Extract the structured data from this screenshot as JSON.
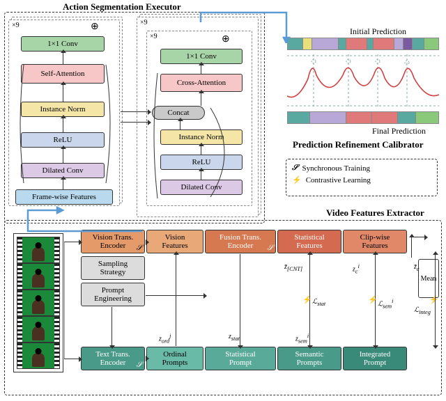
{
  "titles": {
    "ase": "Action Segmentation Executor",
    "prc": "Prediction Refinement Calibrator",
    "vfe": "Video Features Extractor",
    "initial": "Initial Prediction",
    "final": "Final Prediction"
  },
  "left_stack": {
    "repeat": "×9",
    "blocks": [
      "1×1 Conv",
      "Self-Attention",
      "Instance Norm",
      "ReLU",
      "Dilated Conv"
    ],
    "input": "Frame-wise Features",
    "colors": [
      "#a8d5a8",
      "#f7c6c6",
      "#f5e6a8",
      "#c9d6ec",
      "#dcc9e6"
    ],
    "input_color": "#b8d9ee"
  },
  "right_stack": {
    "repeat_outer": "×9",
    "repeat_inner": "×9",
    "blocks": [
      "1×1 Conv",
      "Cross-Attention",
      "Concat",
      "Instance Norm",
      "ReLU",
      "Dilated Conv"
    ],
    "colors": [
      "#a8d5a8",
      "#f7c6c6",
      "#c9c9c9",
      "#f5e6a8",
      "#c9d6ec",
      "#dcc9e6"
    ]
  },
  "legend": {
    "sync": {
      "icon": "𝒮",
      "label": "Synchronous Training"
    },
    "contrast": {
      "icon": "⚡",
      "label": "Contrastive Learning"
    }
  },
  "predictions": {
    "initial_segments": [
      {
        "w": 10,
        "c": "#5aa9a0"
      },
      {
        "w": 6,
        "c": "#e8e07a"
      },
      {
        "w": 18,
        "c": "#b8a8d8"
      },
      {
        "w": 5,
        "c": "#5aa9a0"
      },
      {
        "w": 14,
        "c": "#e07a7a"
      },
      {
        "w": 4,
        "c": "#5aa9a0"
      },
      {
        "w": 14,
        "c": "#e07a7a"
      },
      {
        "w": 6,
        "c": "#b8a8d8"
      },
      {
        "w": 6,
        "c": "#7a5aa0"
      },
      {
        "w": 8,
        "c": "#5aa9a0"
      },
      {
        "w": 9,
        "c": "#8ac97a"
      }
    ],
    "final_segments": [
      {
        "w": 15,
        "c": "#5aa9a0"
      },
      {
        "w": 24,
        "c": "#b8a8d8"
      },
      {
        "w": 17,
        "c": "#e07a7a"
      },
      {
        "w": 17,
        "c": "#e07a7a"
      },
      {
        "w": 12,
        "c": "#5aa9a0"
      },
      {
        "w": 15,
        "c": "#8ac97a"
      }
    ],
    "curve_color": "#d04040"
  },
  "extractor": {
    "vte": "Vision Trans.\nEncoder",
    "vf": "Vision\nFeatures",
    "fte": "Fusion Trans.\nEncoder",
    "sf": "Statistical\nFeatures",
    "cf": "Clip-wise\nFeatures",
    "sampling": "Sampling\nStrategy",
    "prompt": "Prompt\nEngineering",
    "tte": "Text Trans.\nEncoder",
    "op": "Ordinal\nPrompts",
    "sp": "Statistical\nPrompt",
    "semp": "Semantic\nPrompts",
    "ip": "Integrated\nPrompt",
    "mean": "Mean",
    "colors": {
      "orange1": "#e59a6a",
      "orange2": "#e8a878",
      "orange3": "#d67850",
      "red1": "#d46a50",
      "red2": "#e08868",
      "gray1": "#c9c9c9",
      "gray2": "#dcdcdc",
      "teal1": "#4a9a8a",
      "teal2": "#5aaa9a",
      "teal3": "#6abaa8",
      "teal4": "#3a8a7a"
    },
    "math": {
      "zord": "z",
      "zstat": "z_stat",
      "zcnt": "z̄_[CNT]",
      "zci": "z_c^i",
      "zcbar": "z̄_c",
      "lstat": "ℒ_stat",
      "lsem": "ℒ_sem^i",
      "linteg": "ℒ_integ",
      "zsemi": "z_sem^i"
    }
  },
  "sync_icon": "𝒮",
  "bolt_icon": "⚡",
  "circle_plus": "⊕"
}
